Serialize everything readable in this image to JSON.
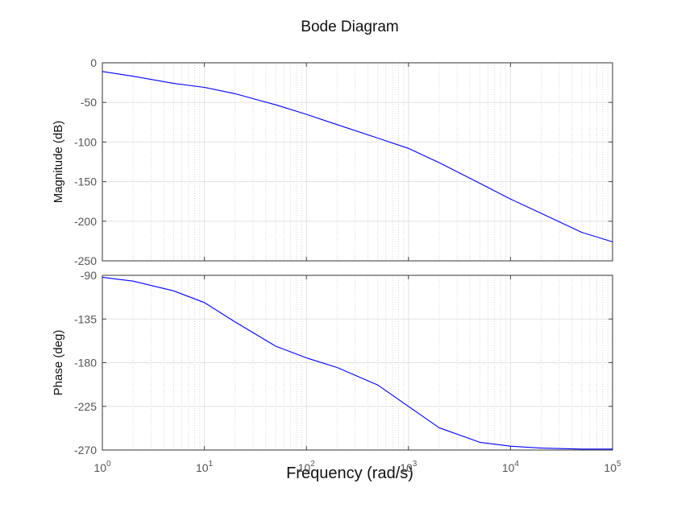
{
  "chart_data": {
    "type": "line",
    "title": "Bode Diagram",
    "xlabel": "Frequency  (rad/s)",
    "xscale": "log",
    "xlim": [
      1,
      100000
    ],
    "x_ticks": [
      {
        "base": "10",
        "exp": "0"
      },
      {
        "base": "10",
        "exp": "1"
      },
      {
        "base": "10",
        "exp": "2"
      },
      {
        "base": "10",
        "exp": "3"
      },
      {
        "base": "10",
        "exp": "4"
      },
      {
        "base": "10",
        "exp": "5"
      }
    ],
    "grid": true,
    "line_color": "#0000ff",
    "panels": [
      {
        "ylabel": "Magnitude (dB)",
        "ylim": [
          -250,
          0
        ],
        "y_ticks": [
          "0",
          "-50",
          "-100",
          "-150",
          "-200",
          "-250"
        ],
        "x": [
          1,
          2,
          5,
          10,
          20,
          50,
          100,
          200,
          500,
          1000,
          2000,
          5000,
          10000,
          20000,
          50000,
          100000
        ],
        "values": [
          -11,
          -17,
          -26,
          -31,
          -39,
          -53,
          -65,
          -78,
          -95,
          -108,
          -126,
          -152,
          -172,
          -190,
          -214,
          -226
        ]
      },
      {
        "ylabel": "Phase (deg)",
        "ylim": [
          -270,
          -90
        ],
        "y_ticks": [
          "-90",
          "-135",
          "-180",
          "-225",
          "-270"
        ],
        "x": [
          1,
          2,
          5,
          10,
          20,
          50,
          100,
          200,
          500,
          1000,
          2000,
          5000,
          10000,
          20000,
          50000,
          100000
        ],
        "values": [
          -92,
          -96,
          -106,
          -118,
          -138,
          -163,
          -175,
          -185,
          -203,
          -225,
          -247,
          -262,
          -266,
          -268,
          -269,
          -269
        ]
      }
    ]
  }
}
